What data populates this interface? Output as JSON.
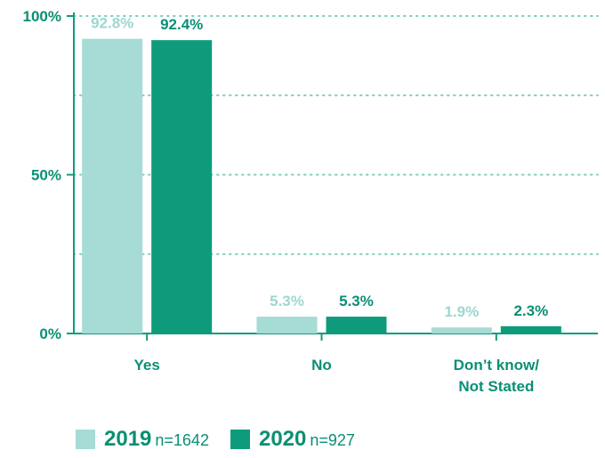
{
  "chart_data": {
    "type": "bar",
    "categories": [
      "Yes",
      [
        "No"
      ],
      [
        "Don’t know/",
        "Not Stated"
      ]
    ],
    "series": [
      {
        "name": "2019",
        "n_label": "n=1642",
        "values": [
          92.8,
          5.3,
          1.9
        ],
        "labels": [
          "92.8%",
          "5.3%",
          "1.9%"
        ],
        "color": "#a6dbd6"
      },
      {
        "name": "2020",
        "n_label": "n=927",
        "values": [
          92.4,
          5.3,
          2.3
        ],
        "labels": [
          "92.4%",
          "5.3%",
          "2.3%"
        ],
        "color": "#0e9b7c"
      }
    ],
    "y_ticks": [
      {
        "value": 100,
        "label": "100%"
      },
      {
        "value": 50,
        "label": "50%"
      },
      {
        "value": 0,
        "label": "0%"
      }
    ],
    "gridlines": [
      100,
      75,
      50,
      25
    ],
    "ylim": [
      0,
      100
    ],
    "grid": true,
    "legend_position": "bottom-left",
    "axis_color": "#0e9b7c",
    "text_color": "#0a8f74"
  }
}
